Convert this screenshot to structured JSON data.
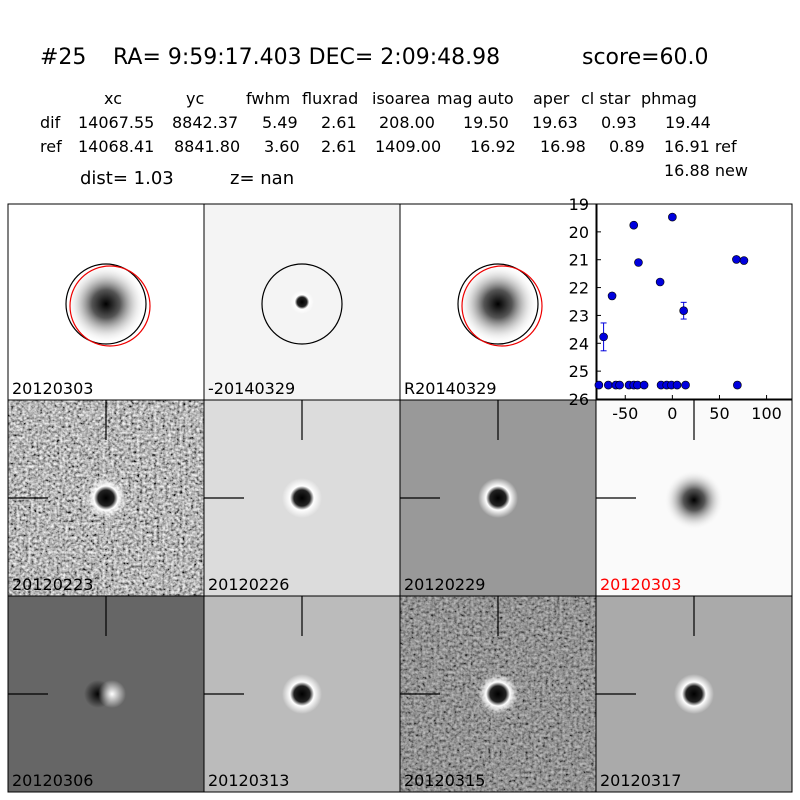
{
  "header": {
    "id": "#25",
    "coords": "RA= 9:59:17.403 DEC= 2:09:48.98",
    "score": "score=60.0"
  },
  "table": {
    "columns": [
      "xc",
      "yc",
      "fwhm",
      "fluxrad",
      "isoarea",
      "mag auto",
      "aper",
      "cl star",
      "phmag"
    ],
    "rows": [
      {
        "name": "dif",
        "cells": [
          "14067.55",
          "8842.37",
          "5.49",
          "2.61",
          "208.00",
          "19.50",
          "19.63",
          "0.93",
          "19.44"
        ]
      },
      {
        "name": "ref",
        "cells": [
          "14068.41",
          "8841.80",
          "3.60",
          "2.61",
          "1409.00",
          "16.92",
          "16.98",
          "0.89",
          "16.91 ref"
        ]
      }
    ],
    "extra": "16.88 new"
  },
  "dist": "dist=  1.03",
  "z": "z=   nan",
  "panels": [
    {
      "label": "20120303"
    },
    {
      "label": "-20140329"
    },
    {
      "label": "R20140329"
    },
    null,
    {
      "label": "20120223"
    },
    {
      "label": "20120226"
    },
    {
      "label": "20120229"
    },
    {
      "label": "20120303",
      "color": "#ff0000"
    },
    {
      "label": "20120306"
    },
    {
      "label": "20120313"
    },
    {
      "label": "20120315"
    },
    {
      "label": "20120317"
    }
  ],
  "chart_data": {
    "type": "scatter",
    "xlim": [
      -80,
      127
    ],
    "ylim": [
      26,
      19
    ],
    "xticks": [
      -50,
      0,
      50,
      100
    ],
    "yticks": [
      19,
      20,
      21,
      22,
      23,
      24,
      25,
      26
    ],
    "series": [
      {
        "color": "#0000dd",
        "x": [
          -73,
          -64,
          -41,
          -36,
          -13,
          0,
          12,
          68,
          76,
          69,
          -78,
          -68,
          -60,
          -56,
          -46,
          -41,
          -37,
          -30,
          -12,
          -6,
          -1,
          5,
          14
        ],
        "values": [
          23.77,
          22.3,
          19.76,
          21.1,
          21.8,
          19.47,
          22.83,
          20.99,
          21.03,
          25.5,
          25.5,
          25.5,
          25.5,
          25.5,
          25.5,
          25.5,
          25.5,
          25.5,
          25.5,
          25.5,
          25.5,
          25.5,
          25.5
        ],
        "errors": [
          0.5,
          0.1,
          0.05,
          0.05,
          0.05,
          0.05,
          0.3,
          0.05,
          0.05,
          0.1,
          0.05,
          0.05,
          0.05,
          0.05,
          0.05,
          0.05,
          0.05,
          0.05,
          0.05,
          0.05,
          0.05,
          0.05,
          0.05
        ]
      }
    ]
  }
}
